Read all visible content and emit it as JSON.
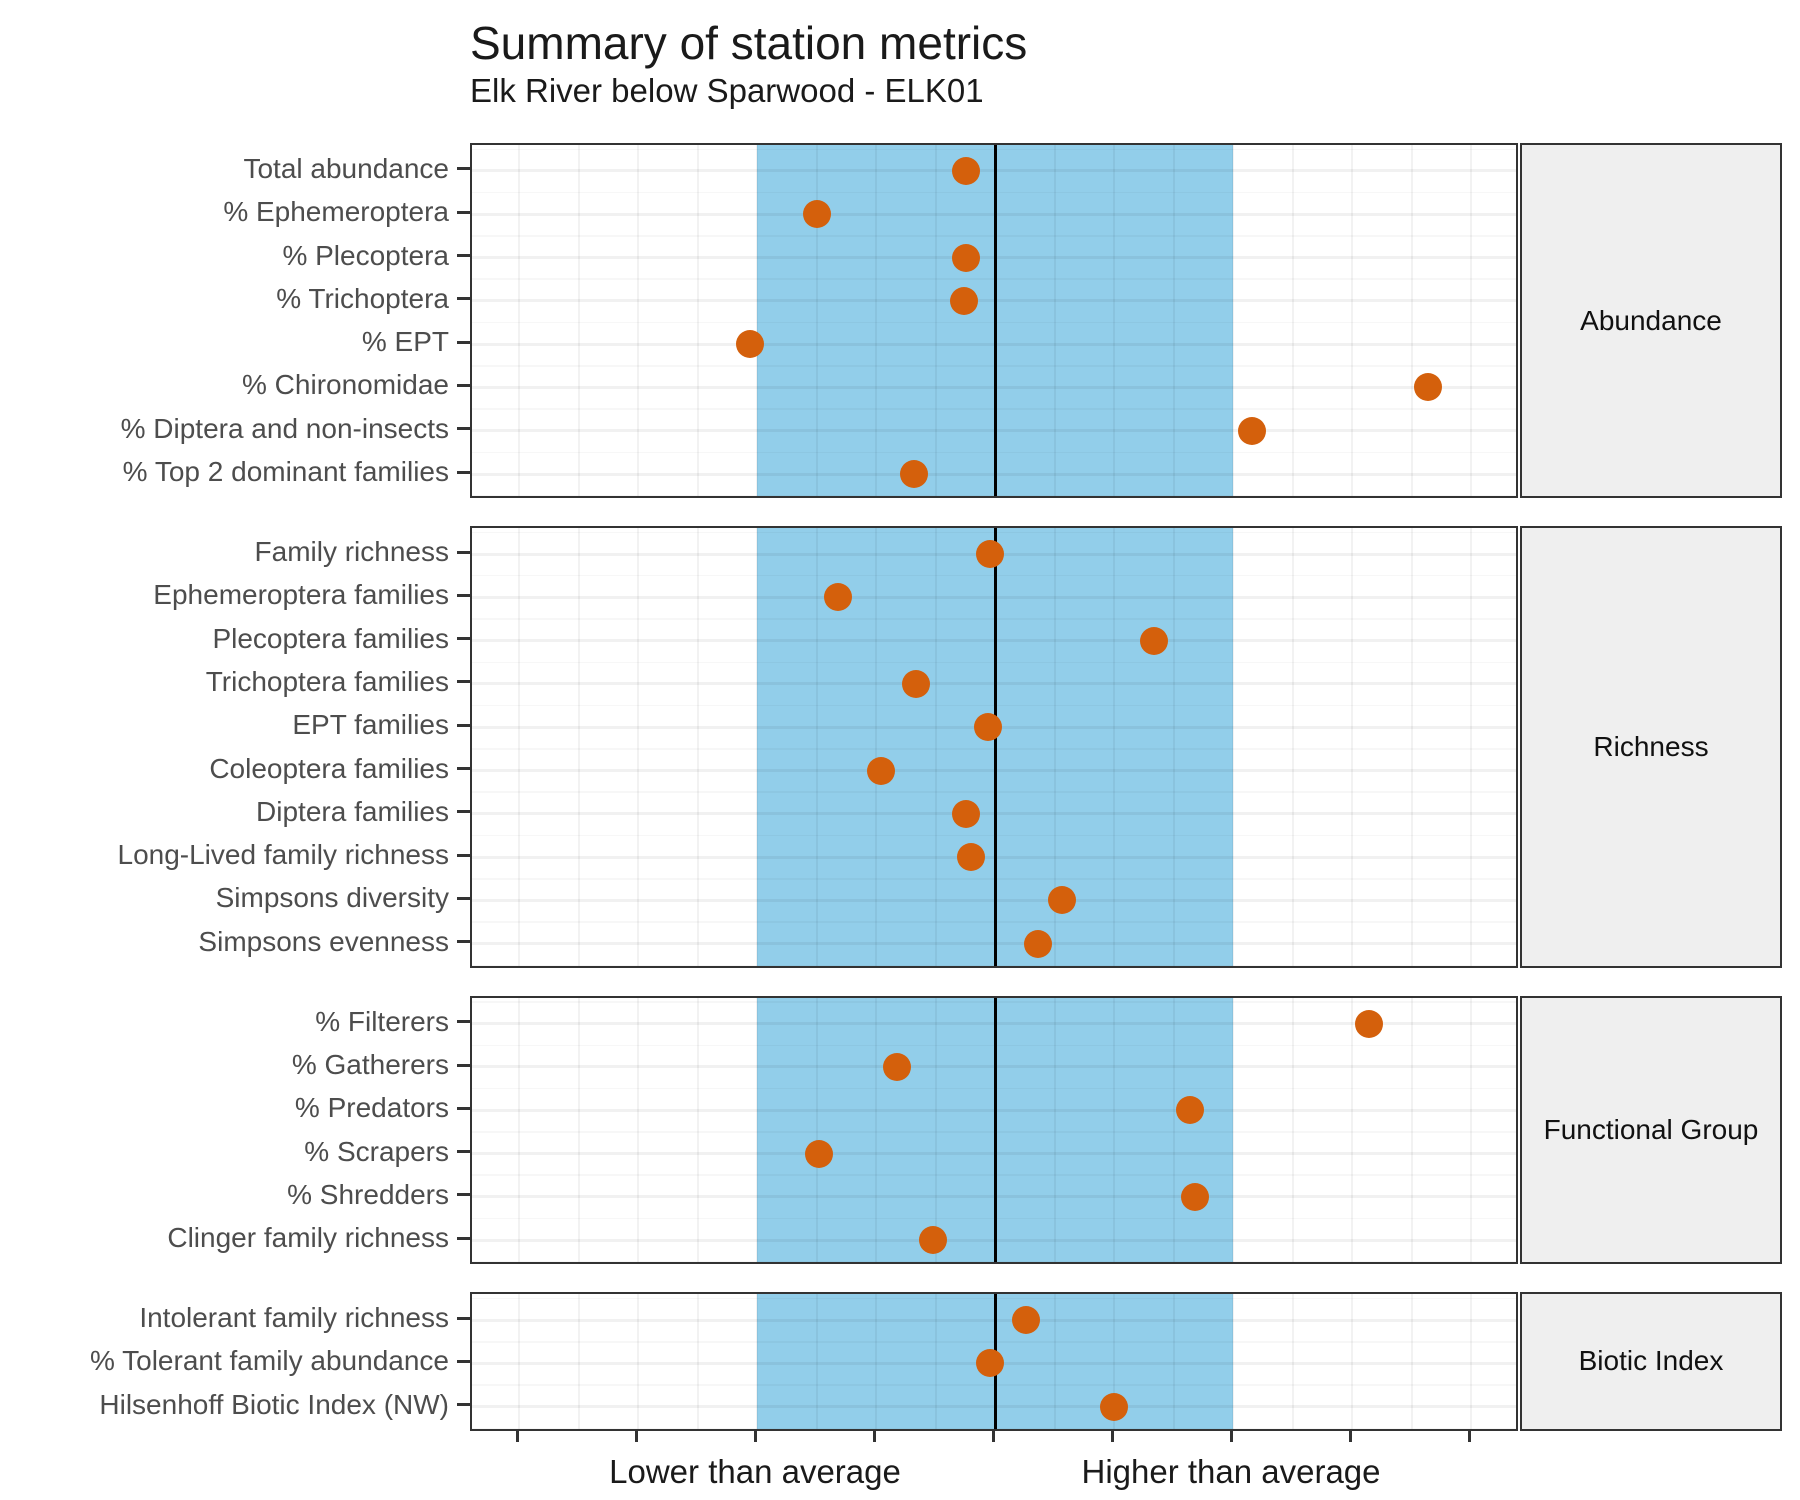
{
  "title": "Summary of station metrics",
  "subtitle": "Elk River below Sparwood - ELK01",
  "chart_data": {
    "type": "scatter",
    "subtype": "horizontal-dot-plot-faceted",
    "title": "Summary of station metrics",
    "subtitle": "Elk River below Sparwood - ELK01",
    "x_unit": "standard deviations from long-term station average",
    "x_range": [
      -2.2,
      2.2
    ],
    "x_ticks": [
      -2,
      -1.5,
      -1,
      -0.5,
      0,
      0.5,
      1,
      1.5,
      2
    ],
    "gridline_step": 0.25,
    "reference": {
      "center_line_x": 0,
      "band_x_min": -1,
      "band_x_max": 1
    },
    "axis_labels": [
      {
        "text": "Lower than average",
        "x": -1
      },
      {
        "text": "Higher than average",
        "x": 1
      }
    ],
    "legend": "none",
    "grid": true,
    "facets": [
      {
        "label": "Abundance",
        "points": [
          {
            "metric": "Total abundance",
            "value": -0.12
          },
          {
            "metric": "% Ephemeroptera",
            "value": -0.75
          },
          {
            "metric": "% Plecoptera",
            "value": -0.12
          },
          {
            "metric": "% Trichoptera",
            "value": -0.13
          },
          {
            "metric": "% EPT",
            "value": -1.03
          },
          {
            "metric": "% Chironomidae",
            "value": 1.82
          },
          {
            "metric": "% Diptera and non-insects",
            "value": 1.08
          },
          {
            "metric": "% Top 2 dominant families",
            "value": -0.34
          }
        ]
      },
      {
        "label": "Richness",
        "points": [
          {
            "metric": "Family richness",
            "value": -0.02
          },
          {
            "metric": "Ephemeroptera families",
            "value": -0.66
          },
          {
            "metric": "Plecoptera families",
            "value": 0.67
          },
          {
            "metric": "Trichoptera families",
            "value": -0.33
          },
          {
            "metric": "EPT families",
            "value": -0.03
          },
          {
            "metric": "Coleoptera families",
            "value": -0.48
          },
          {
            "metric": "Diptera families",
            "value": -0.12
          },
          {
            "metric": "Long-Lived family richness",
            "value": -0.1
          },
          {
            "metric": "Simpsons diversity",
            "value": 0.28
          },
          {
            "metric": "Simpsons evenness",
            "value": 0.18
          }
        ]
      },
      {
        "label": "Functional Group",
        "points": [
          {
            "metric": "% Filterers",
            "value": 1.57
          },
          {
            "metric": "% Gatherers",
            "value": -0.41
          },
          {
            "metric": "% Predators",
            "value": 0.82
          },
          {
            "metric": "% Scrapers",
            "value": -0.74
          },
          {
            "metric": "% Shredders",
            "value": 0.84
          },
          {
            "metric": "Clinger family richness",
            "value": -0.26
          }
        ]
      },
      {
        "label": "Biotic Index",
        "points": [
          {
            "metric": "Intolerant family richness",
            "value": 0.13
          },
          {
            "metric": "% Tolerant family abundance",
            "value": -0.02
          },
          {
            "metric": "Hilsenhoff Biotic Index (NW)",
            "value": 0.5
          }
        ]
      }
    ],
    "colors": {
      "point": "#D4600C",
      "band": "#92CEEA",
      "center_line": "#000000",
      "panel_border": "#333333",
      "strip_background": "#efefef",
      "axis_text": "#4d4d4d"
    }
  }
}
